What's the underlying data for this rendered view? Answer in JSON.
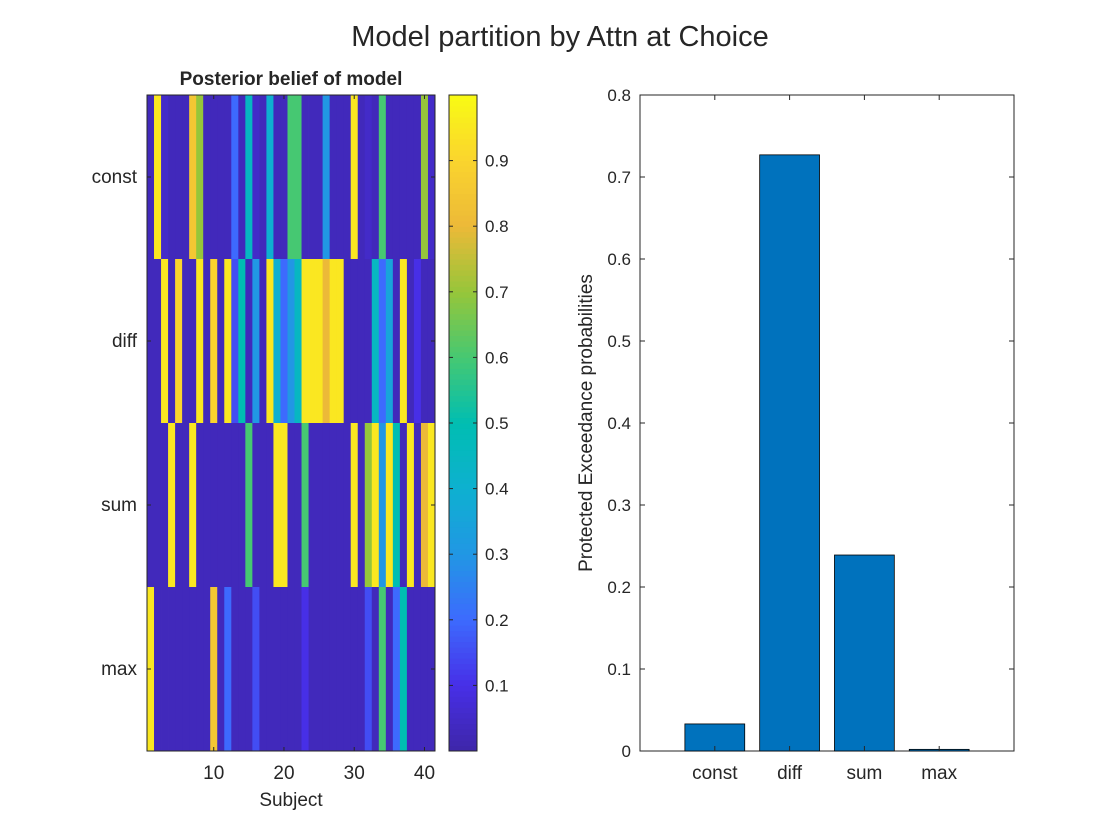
{
  "figure": {
    "title": "Model partition by Attn at Choice"
  },
  "chart_data": [
    {
      "type": "heatmap",
      "title": "Posterior belief of model",
      "xlabel": "Subject",
      "ylabel": "",
      "rows": [
        "const",
        "diff",
        "sum",
        "max"
      ],
      "x_ticks": [
        10,
        20,
        30,
        40
      ],
      "x_range": [
        1,
        41
      ],
      "colorbar": {
        "colormap": "parula",
        "range": [
          0,
          1
        ],
        "ticks": [
          0.1,
          0.2,
          0.3,
          0.4,
          0.5,
          0.6,
          0.7,
          0.8,
          0.9
        ],
        "tick_labels": [
          "0.1",
          "0.2",
          "0.3",
          "0.4",
          "0.5",
          "0.6",
          "0.7",
          "0.8",
          "0.9"
        ]
      },
      "values": [
        [
          0.03,
          0.95,
          0.05,
          0.03,
          0.03,
          0.03,
          0.85,
          0.7,
          0.03,
          0.03,
          0.03,
          0.03,
          0.2,
          0.03,
          0.45,
          0.05,
          0.03,
          0.4,
          0.03,
          0.03,
          0.6,
          0.6,
          0.03,
          0.03,
          0.03,
          0.3,
          0.03,
          0.03,
          0.03,
          0.95,
          0.03,
          0.05,
          0.03,
          0.6,
          0.03,
          0.03,
          0.03,
          0.03,
          0.03,
          0.7,
          0.05
        ],
        [
          0.03,
          0.03,
          0.95,
          0.03,
          0.9,
          0.03,
          0.03,
          0.95,
          0.03,
          0.9,
          0.03,
          0.95,
          0.15,
          0.5,
          0.03,
          0.3,
          0.03,
          0.95,
          0.4,
          0.2,
          0.3,
          0.45,
          0.95,
          0.95,
          0.95,
          0.8,
          0.95,
          0.95,
          0.03,
          0.03,
          0.03,
          0.03,
          0.45,
          0.2,
          0.35,
          0.03,
          0.95,
          0.03,
          0.1,
          0.03,
          0.03
        ],
        [
          0.03,
          0.03,
          0.03,
          0.95,
          0.03,
          0.03,
          0.95,
          0.03,
          0.03,
          0.03,
          0.03,
          0.03,
          0.03,
          0.03,
          0.6,
          0.03,
          0.03,
          0.03,
          0.95,
          0.95,
          0.03,
          0.03,
          0.6,
          0.03,
          0.03,
          0.03,
          0.03,
          0.03,
          0.03,
          0.95,
          0.03,
          0.7,
          0.95,
          0.3,
          0.95,
          0.5,
          0.03,
          0.95,
          0.03,
          0.8,
          0.95
        ],
        [
          0.95,
          0.03,
          0.03,
          0.03,
          0.03,
          0.03,
          0.03,
          0.03,
          0.03,
          0.85,
          0.03,
          0.2,
          0.03,
          0.03,
          0.03,
          0.15,
          0.03,
          0.03,
          0.03,
          0.03,
          0.03,
          0.03,
          0.1,
          0.03,
          0.03,
          0.03,
          0.03,
          0.03,
          0.03,
          0.03,
          0.03,
          0.15,
          0.03,
          0.6,
          0.03,
          0.2,
          0.5,
          0.03,
          0.03,
          0.03,
          0.03
        ]
      ]
    },
    {
      "type": "bar",
      "title": "",
      "xlabel": "",
      "ylabel": "Protected Exceedance probabilities",
      "categories": [
        "const",
        "diff",
        "sum",
        "max"
      ],
      "values": [
        0.033,
        0.727,
        0.239,
        0.002
      ],
      "ylim": [
        0,
        0.8
      ],
      "y_ticks": [
        0,
        0.1,
        0.2,
        0.3,
        0.4,
        0.5,
        0.6,
        0.7,
        0.8
      ],
      "y_tick_labels": [
        "0",
        "0.1",
        "0.2",
        "0.3",
        "0.4",
        "0.5",
        "0.6",
        "0.7",
        "0.8"
      ],
      "bar_color": "#0072BD"
    }
  ]
}
